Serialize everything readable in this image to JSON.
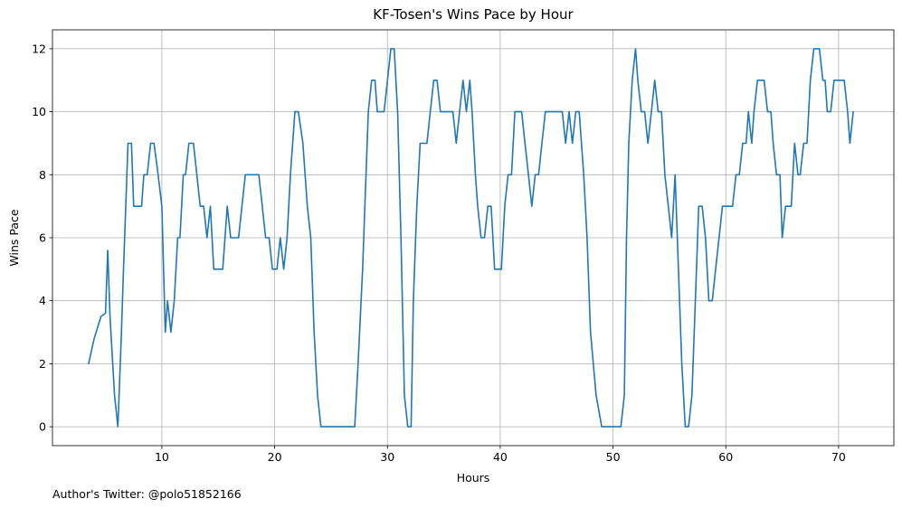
{
  "chart_data": {
    "type": "line",
    "title": "KF-Tosen's Wins Pace by Hour",
    "xlabel": "Hours",
    "ylabel": "Wins Pace",
    "xlim": [
      0.3,
      74.9
    ],
    "ylim": [
      -0.6,
      12.6
    ],
    "xticks": [
      10,
      20,
      30,
      40,
      50,
      60,
      70
    ],
    "yticks": [
      0,
      2,
      4,
      6,
      8,
      10,
      12
    ],
    "grid": true,
    "line_color": "#1f77b4",
    "series": [
      {
        "x": [
          3.5,
          4.0,
          4.6,
          5.0,
          5.2,
          5.4,
          5.8,
          6.1,
          6.4,
          6.6,
          7.0,
          7.3,
          7.5,
          8.2,
          8.4,
          8.7,
          9.0,
          9.3,
          9.6,
          10.0,
          10.3,
          10.5,
          10.8,
          11.1,
          11.4,
          11.6,
          11.9,
          12.1,
          12.4,
          12.8,
          13.1,
          13.4,
          13.7,
          14.0,
          14.3,
          14.6,
          15.0,
          15.4,
          15.8,
          16.1,
          16.4,
          16.8,
          17.1,
          17.4,
          17.8,
          18.2,
          18.6,
          18.9,
          19.2,
          19.5,
          19.8,
          20.2,
          20.5,
          20.8,
          21.1,
          21.4,
          21.8,
          22.1,
          22.5,
          22.9,
          23.2,
          23.5,
          23.8,
          24.1,
          24.5,
          25.0,
          25.5,
          26.0,
          26.6,
          27.1,
          27.4,
          27.8,
          28.0,
          28.3,
          28.6,
          28.9,
          29.1,
          29.4,
          29.7,
          30.0,
          30.3,
          30.6,
          30.9,
          31.2,
          31.5,
          31.8,
          32.1,
          32.3,
          32.6,
          32.9,
          33.2,
          33.5,
          33.8,
          34.1,
          34.4,
          34.7,
          35.0,
          35.2,
          35.5,
          35.8,
          36.1,
          36.4,
          36.7,
          37.0,
          37.3,
          37.5,
          37.8,
          38.0,
          38.3,
          38.6,
          38.9,
          39.2,
          39.5,
          39.8,
          40.1,
          40.4,
          40.7,
          41.0,
          41.3,
          41.6,
          41.9,
          42.2,
          42.5,
          42.8,
          43.1,
          43.4,
          43.7,
          44.0,
          44.3,
          44.6,
          44.9,
          45.2,
          45.5,
          45.8,
          46.1,
          46.4,
          46.7,
          47.0,
          47.4,
          47.7,
          48.0,
          48.5,
          49.0,
          49.5,
          50.0,
          50.3,
          50.7,
          51.0,
          51.2,
          51.4,
          51.7,
          52.0,
          52.2,
          52.5,
          52.8,
          53.1,
          53.4,
          53.7,
          54.0,
          54.3,
          54.6,
          54.9,
          55.2,
          55.5,
          55.8,
          56.1,
          56.4,
          56.7,
          57.0,
          57.3,
          57.6,
          57.9,
          58.2,
          58.5,
          58.8,
          59.1,
          59.4,
          59.7,
          60.0,
          60.3,
          60.6,
          60.9,
          61.2,
          61.5,
          61.8,
          62.0,
          62.3,
          62.5,
          62.8,
          63.1,
          63.4,
          63.7,
          64.0,
          64.2,
          64.5,
          64.8,
          65.0,
          65.3,
          65.6,
          65.8,
          66.1,
          66.4,
          66.6,
          66.9,
          67.2,
          67.5,
          67.8,
          68.0,
          68.3,
          68.6,
          68.8,
          69.0,
          69.3,
          69.6,
          69.9,
          70.2,
          70.5,
          70.8,
          71.0,
          71.3
        ],
        "y": [
          2,
          2.8,
          3.5,
          3.6,
          5.6,
          3.5,
          1,
          0,
          2.8,
          5,
          9,
          9,
          7,
          7,
          8,
          8,
          9,
          9,
          8.2,
          7,
          3,
          4,
          3,
          4,
          6,
          6,
          8,
          8,
          9,
          9,
          8,
          7,
          7,
          6,
          7,
          5,
          5,
          5,
          7,
          6,
          6,
          6,
          7,
          8,
          8,
          8,
          8,
          7,
          6,
          6,
          5,
          5,
          6,
          5,
          6,
          8,
          10,
          10,
          9,
          7,
          6,
          3,
          1,
          0,
          0,
          0,
          0,
          0,
          0,
          0,
          2,
          5,
          7,
          10,
          11,
          11,
          10,
          10,
          10,
          11,
          12,
          12,
          10,
          6,
          1,
          0,
          0,
          4,
          7,
          9,
          9,
          9,
          10,
          11,
          11,
          10,
          10,
          10,
          10,
          10,
          9,
          10,
          11,
          10,
          11,
          10,
          8,
          7,
          6,
          6,
          7,
          7,
          5,
          5,
          5,
          7,
          8,
          8,
          10,
          10,
          10,
          9,
          8,
          7,
          8,
          8,
          9,
          10,
          10,
          10,
          10,
          10,
          10,
          9,
          10,
          9,
          10,
          10,
          8,
          6,
          3,
          1,
          0,
          0,
          0,
          0,
          0,
          1,
          6,
          9,
          11,
          12,
          11,
          10,
          10,
          9,
          10,
          11,
          10,
          10,
          8,
          7,
          6,
          8,
          5,
          2,
          0,
          0,
          1,
          4,
          7,
          7,
          6,
          4,
          4,
          5,
          6,
          7,
          7,
          7,
          7,
          8,
          8,
          9,
          9,
          10,
          9,
          10,
          11,
          11,
          11,
          10,
          10,
          9,
          8,
          8,
          6,
          7,
          7,
          7,
          9,
          8,
          8,
          9,
          9,
          11,
          12,
          12,
          12,
          11,
          11,
          10,
          10,
          11,
          11,
          11,
          11,
          10,
          9,
          10
        ]
      }
    ],
    "footer": "Author's Twitter: @polo51852166"
  }
}
